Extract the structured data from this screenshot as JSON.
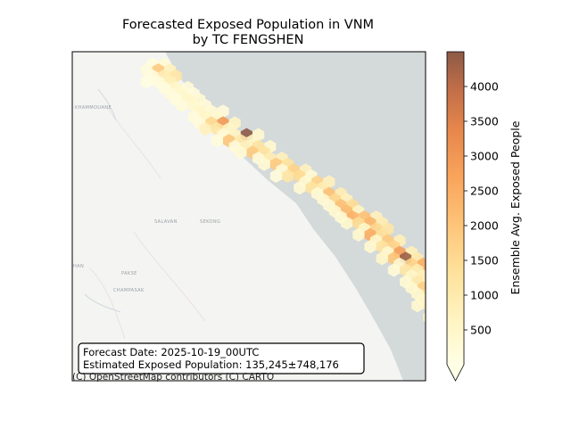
{
  "title_line1": "Forecasted Exposed Population in VNM",
  "title_line2": "by TC FENGSHEN",
  "info": {
    "forecast_date": "Forecast Date: 2025-10-19_00UTC",
    "estimate": "Estimated Exposed Population: 135,245±748,176"
  },
  "attribution": "(C) OpenStreetMap contributors (C) CARTO",
  "map_labels": [
    "KHAMMOUANE",
    "SALAVAN",
    "SEKONG",
    "CHAMPASAK",
    "PAKSE",
    "HAN"
  ],
  "colors": {
    "sea": "#d4d9da",
    "land": "#f4f4f2",
    "colormap": [
      "#ffffe6",
      "#fff3c0",
      "#fee19a",
      "#fdc478",
      "#f9a45b",
      "#e6874c",
      "#c16e48",
      "#8d5a46"
    ]
  },
  "chart_data": {
    "type": "heatmap",
    "title": "Forecasted Exposed Population in VNM\nby TC FENGSHEN",
    "colorbar": {
      "label": "Ensemble Avg. Exposed People",
      "range": [
        0,
        4500
      ],
      "ticks": [
        "500",
        "1000",
        "1500",
        "2000",
        "2500",
        "3000",
        "3500",
        "4000"
      ],
      "extend": "min"
    },
    "cells": [
      {
        "c": 4,
        "r": 0,
        "v": 150
      },
      {
        "c": 5,
        "r": 0,
        "v": 300
      },
      {
        "c": 4,
        "r": 1,
        "v": 200
      },
      {
        "c": 5,
        "r": 1,
        "v": 1800
      },
      {
        "c": 6,
        "r": 1,
        "v": 700
      },
      {
        "c": 5,
        "r": 2,
        "v": 900
      },
      {
        "c": 6,
        "r": 2,
        "v": 1100
      },
      {
        "c": 4,
        "r": 2,
        "v": 150
      },
      {
        "c": 6,
        "r": 3,
        "v": 800
      },
      {
        "c": 5,
        "r": 3,
        "v": 200
      },
      {
        "c": 4,
        "r": 3,
        "v": 100
      },
      {
        "c": 6,
        "r": 4,
        "v": 500
      },
      {
        "c": 7,
        "r": 4,
        "v": 250
      },
      {
        "c": 5,
        "r": 4,
        "v": 150
      },
      {
        "c": 7,
        "r": 5,
        "v": 400
      },
      {
        "c": 8,
        "r": 5,
        "v": 150
      },
      {
        "c": 6,
        "r": 5,
        "v": 200
      },
      {
        "c": 7,
        "r": 6,
        "v": 500
      },
      {
        "c": 8,
        "r": 6,
        "v": 350
      },
      {
        "c": 6,
        "r": 6,
        "v": 150
      },
      {
        "c": 8,
        "r": 7,
        "v": 400
      },
      {
        "c": 9,
        "r": 7,
        "v": 250
      },
      {
        "c": 7,
        "r": 7,
        "v": 200
      },
      {
        "c": 8,
        "r": 8,
        "v": 500
      },
      {
        "c": 9,
        "r": 8,
        "v": 300
      },
      {
        "c": 10,
        "r": 8,
        "v": 250
      },
      {
        "c": 9,
        "r": 9,
        "v": 500
      },
      {
        "c": 10,
        "r": 9,
        "v": 400
      },
      {
        "c": 8,
        "r": 9,
        "v": 200
      },
      {
        "c": 9,
        "r": 10,
        "v": 1500
      },
      {
        "c": 10,
        "r": 10,
        "v": 2800
      },
      {
        "c": 11,
        "r": 10,
        "v": 600
      },
      {
        "c": 8,
        "r": 10,
        "v": 200
      },
      {
        "c": 9,
        "r": 11,
        "v": 700
      },
      {
        "c": 10,
        "r": 11,
        "v": 1100
      },
      {
        "c": 11,
        "r": 11,
        "v": 500
      },
      {
        "c": 11,
        "r": 12,
        "v": 600
      },
      {
        "c": 12,
        "r": 12,
        "v": 4500
      },
      {
        "c": 13,
        "r": 12,
        "v": 400
      },
      {
        "c": 10,
        "r": 12,
        "v": 300
      },
      {
        "c": 11,
        "r": 13,
        "v": 1900
      },
      {
        "c": 12,
        "r": 13,
        "v": 1000
      },
      {
        "c": 13,
        "r": 13,
        "v": 500
      },
      {
        "c": 10,
        "r": 13,
        "v": 200
      },
      {
        "c": 12,
        "r": 14,
        "v": 700
      },
      {
        "c": 13,
        "r": 14,
        "v": 1200
      },
      {
        "c": 14,
        "r": 14,
        "v": 400
      },
      {
        "c": 11,
        "r": 14,
        "v": 250
      },
      {
        "c": 13,
        "r": 15,
        "v": 1800
      },
      {
        "c": 14,
        "r": 15,
        "v": 1200
      },
      {
        "c": 12,
        "r": 15,
        "v": 300
      },
      {
        "c": 14,
        "r": 16,
        "v": 900
      },
      {
        "c": 15,
        "r": 16,
        "v": 700
      },
      {
        "c": 13,
        "r": 16,
        "v": 250
      },
      {
        "c": 15,
        "r": 17,
        "v": 1800
      },
      {
        "c": 16,
        "r": 17,
        "v": 1200
      },
      {
        "c": 14,
        "r": 17,
        "v": 300
      },
      {
        "c": 16,
        "r": 18,
        "v": 1600
      },
      {
        "c": 17,
        "r": 18,
        "v": 700
      },
      {
        "c": 15,
        "r": 18,
        "v": 250
      },
      {
        "c": 16,
        "r": 19,
        "v": 1100
      },
      {
        "c": 17,
        "r": 19,
        "v": 1400
      },
      {
        "c": 18,
        "r": 19,
        "v": 300
      },
      {
        "c": 15,
        "r": 19,
        "v": 200
      },
      {
        "c": 18,
        "r": 20,
        "v": 1600
      },
      {
        "c": 19,
        "r": 20,
        "v": 700
      },
      {
        "c": 17,
        "r": 20,
        "v": 350
      },
      {
        "c": 18,
        "r": 21,
        "v": 1200
      },
      {
        "c": 19,
        "r": 21,
        "v": 900
      },
      {
        "c": 17,
        "r": 21,
        "v": 300
      },
      {
        "c": 19,
        "r": 22,
        "v": 2000
      },
      {
        "c": 20,
        "r": 22,
        "v": 900
      },
      {
        "c": 18,
        "r": 22,
        "v": 300
      },
      {
        "c": 20,
        "r": 23,
        "v": 1500
      },
      {
        "c": 21,
        "r": 23,
        "v": 700
      },
      {
        "c": 19,
        "r": 23,
        "v": 350
      },
      {
        "c": 20,
        "r": 24,
        "v": 2000
      },
      {
        "c": 21,
        "r": 24,
        "v": 1400
      },
      {
        "c": 19,
        "r": 24,
        "v": 300
      },
      {
        "c": 21,
        "r": 25,
        "v": 2100
      },
      {
        "c": 22,
        "r": 25,
        "v": 600
      },
      {
        "c": 20,
        "r": 25,
        "v": 400
      },
      {
        "c": 21,
        "r": 26,
        "v": 2300
      },
      {
        "c": 22,
        "r": 26,
        "v": 2000
      },
      {
        "c": 23,
        "r": 26,
        "v": 700
      },
      {
        "c": 20,
        "r": 26,
        "v": 300
      },
      {
        "c": 22,
        "r": 27,
        "v": 1400
      },
      {
        "c": 23,
        "r": 27,
        "v": 2200
      },
      {
        "c": 24,
        "r": 27,
        "v": 900
      },
      {
        "c": 21,
        "r": 27,
        "v": 400
      },
      {
        "c": 23,
        "r": 28,
        "v": 1500
      },
      {
        "c": 24,
        "r": 28,
        "v": 1100
      },
      {
        "c": 22,
        "r": 28,
        "v": 500
      },
      {
        "c": 23,
        "r": 29,
        "v": 2400
      },
      {
        "c": 24,
        "r": 29,
        "v": 1300
      },
      {
        "c": 22,
        "r": 29,
        "v": 400
      },
      {
        "c": 24,
        "r": 30,
        "v": 1800
      },
      {
        "c": 25,
        "r": 30,
        "v": 800
      },
      {
        "c": 23,
        "r": 30,
        "v": 500
      },
      {
        "c": 24,
        "r": 31,
        "v": 1200
      },
      {
        "c": 25,
        "r": 31,
        "v": 1600
      },
      {
        "c": 23,
        "r": 31,
        "v": 400
      },
      {
        "c": 25,
        "r": 32,
        "v": 2700
      },
      {
        "c": 26,
        "r": 32,
        "v": 800
      },
      {
        "c": 24,
        "r": 32,
        "v": 400
      },
      {
        "c": 25,
        "r": 33,
        "v": 1900
      },
      {
        "c": 26,
        "r": 33,
        "v": 4300
      },
      {
        "c": 27,
        "r": 33,
        "v": 1000
      },
      {
        "c": 24,
        "r": 33,
        "v": 500
      },
      {
        "c": 26,
        "r": 34,
        "v": 1600
      },
      {
        "c": 27,
        "r": 34,
        "v": 2400
      },
      {
        "c": 25,
        "r": 34,
        "v": 400
      },
      {
        "c": 26,
        "r": 35,
        "v": 1100
      },
      {
        "c": 27,
        "r": 35,
        "v": 900
      },
      {
        "c": 25,
        "r": 35,
        "v": 300
      },
      {
        "c": 27,
        "r": 36,
        "v": 800
      },
      {
        "c": 26,
        "r": 36,
        "v": 500
      },
      {
        "c": 28,
        "r": 36,
        "v": 300
      },
      {
        "c": 27,
        "r": 37,
        "v": 1000
      },
      {
        "c": 28,
        "r": 37,
        "v": 700
      },
      {
        "c": 26,
        "r": 37,
        "v": 300
      },
      {
        "c": 27,
        "r": 38,
        "v": 1700
      },
      {
        "c": 28,
        "r": 38,
        "v": 900
      },
      {
        "c": 26,
        "r": 38,
        "v": 400
      },
      {
        "c": 28,
        "r": 39,
        "v": 1200
      },
      {
        "c": 29,
        "r": 39,
        "v": 800
      },
      {
        "c": 27,
        "r": 39,
        "v": 400
      },
      {
        "c": 28,
        "r": 40,
        "v": 1600
      },
      {
        "c": 29,
        "r": 40,
        "v": 1100
      },
      {
        "c": 27,
        "r": 40,
        "v": 500
      },
      {
        "c": 28,
        "r": 41,
        "v": 800
      },
      {
        "c": 29,
        "r": 41,
        "v": 900
      },
      {
        "c": 27,
        "r": 41,
        "v": 400
      },
      {
        "c": 28,
        "r": 42,
        "v": 1000
      },
      {
        "c": 29,
        "r": 42,
        "v": 1100
      },
      {
        "c": 30,
        "r": 42,
        "v": 600
      },
      {
        "c": 29,
        "r": 43,
        "v": 700
      },
      {
        "c": 30,
        "r": 43,
        "v": 900
      },
      {
        "c": 28,
        "r": 43,
        "v": 500
      },
      {
        "c": 29,
        "r": 44,
        "v": 600
      },
      {
        "c": 30,
        "r": 44,
        "v": 500
      }
    ]
  }
}
